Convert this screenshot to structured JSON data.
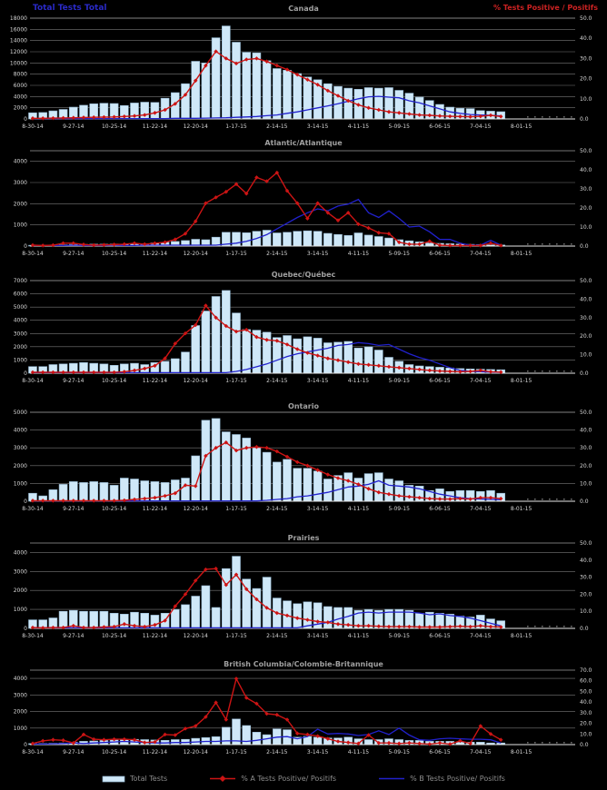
{
  "header": {
    "left_label": "Total Tests Total",
    "right_label": "% Tests Positive / Positifs"
  },
  "legend": {
    "total_tests": "Total Tests",
    "pct_a": "% A Tests Positive/ Positifs",
    "pct_b": "% B Tests Positive/ Positifs"
  },
  "colors": {
    "background": "#000000",
    "bar_fill": "#cfe8f8",
    "bar_stroke": "#8fb2cc",
    "line_a": "#cc1414",
    "line_b": "#2121cc",
    "grid": "#787878",
    "axis_text": "#d8d8d8",
    "title_text": "#a0a0a0",
    "header_blue": "#2a2ac8",
    "header_red": "#cc2222",
    "legend_text": "#8c8c8c",
    "baseline": "#e6e6e6"
  },
  "x_tick_labels": [
    "8-30-14",
    "9-27-14",
    "10-25-14",
    "11-22-14",
    "12-20-14",
    "1-17-15",
    "2-14-15",
    "3-14-15",
    "4-11-15",
    "5-09-15",
    "6-06-15",
    "7-04-15",
    "8-01-15"
  ],
  "chart_data": [
    {
      "type": "bar",
      "title": "Canada",
      "left_axis": {
        "max": 18000,
        "step": 2000,
        "top_value": 18000,
        "tick_labels": [
          "0",
          "2000",
          "4000",
          "6000",
          "8000",
          "10000",
          "12000",
          "14000",
          "16000",
          "18000"
        ]
      },
      "right_axis": {
        "max": 50,
        "step": 10,
        "tick_labels": [
          "0.0",
          "10.0",
          "20.0",
          "30.0",
          "40.0",
          "50.0"
        ]
      },
      "bars": [
        1100,
        1150,
        1450,
        1700,
        2100,
        2450,
        2700,
        2800,
        2750,
        2400,
        2850,
        3000,
        2950,
        3700,
        4700,
        6300,
        10300,
        10000,
        14500,
        16600,
        13700,
        11900,
        11800,
        10400,
        9000,
        8700,
        8100,
        7500,
        7000,
        6300,
        5800,
        5500,
        5300,
        5600,
        5500,
        5600,
        5100,
        4600,
        3900,
        3300,
        2600,
        2100,
        1900,
        1850,
        1500,
        1400,
        1300
      ],
      "pct_a": [
        0.3,
        0.3,
        0.4,
        0.5,
        0.6,
        0.7,
        0.8,
        0.9,
        1.0,
        1.2,
        1.5,
        2.0,
        3.0,
        4.5,
        7.5,
        12.0,
        19.0,
        26.5,
        33.5,
        30.0,
        27.5,
        29.5,
        30.0,
        28.5,
        26.5,
        24.5,
        22.0,
        19.5,
        17.0,
        14.0,
        11.5,
        9.0,
        7.0,
        5.5,
        4.5,
        3.5,
        3.0,
        2.5,
        2.0,
        1.8,
        1.5,
        1.3,
        1.2,
        1.1,
        1.3,
        1.8,
        1.2
      ],
      "pct_b": [
        0.2,
        0.2,
        0.2,
        0.2,
        0.2,
        0.2,
        0.2,
        0.2,
        0.2,
        0.2,
        0.2,
        0.2,
        0.2,
        0.2,
        0.3,
        0.3,
        0.3,
        0.4,
        0.5,
        0.6,
        0.8,
        1.0,
        1.2,
        1.6,
        2.0,
        2.8,
        3.5,
        4.5,
        5.5,
        6.5,
        7.5,
        8.8,
        10.0,
        11.0,
        11.2,
        10.8,
        10.5,
        9.0,
        8.0,
        6.5,
        5.0,
        3.5,
        2.8,
        2.2,
        2.0,
        1.8,
        1.5
      ]
    },
    {
      "type": "bar",
      "title": "Atlantic/Atlantique",
      "left_axis": {
        "max": 4000,
        "step": 1000,
        "top_value": 4500,
        "tick_labels": [
          "0",
          "1000",
          "2000",
          "3000",
          "4000"
        ]
      },
      "right_axis": {
        "max": 50,
        "step": 10,
        "tick_labels": [
          "0.0",
          "10.0",
          "20.0",
          "30.0",
          "40.0",
          "50.0"
        ]
      },
      "bars": [
        40,
        40,
        50,
        60,
        80,
        80,
        90,
        90,
        100,
        90,
        100,
        110,
        150,
        180,
        220,
        260,
        320,
        300,
        420,
        650,
        650,
        630,
        700,
        750,
        620,
        650,
        700,
        720,
        700,
        600,
        550,
        500,
        620,
        520,
        450,
        380,
        300,
        250,
        200,
        150,
        130,
        110,
        100,
        80,
        70,
        60,
        50
      ],
      "pct_a": [
        0.5,
        0.3,
        0.5,
        1.5,
        1.5,
        0.8,
        0.5,
        0.6,
        0.8,
        1.0,
        1.5,
        1.0,
        1.5,
        2.0,
        3.5,
        6.5,
        13.0,
        22.5,
        25.5,
        28.5,
        32.5,
        27.5,
        36.0,
        34.0,
        38.5,
        29.0,
        22.5,
        14.5,
        22.5,
        17.5,
        13.5,
        17.5,
        11.5,
        9.5,
        7.0,
        6.5,
        2.0,
        1.0,
        1.0,
        2.5,
        0.5,
        0.3,
        0.3,
        0.3,
        0.3,
        1.5,
        0.3
      ],
      "pct_b": [
        0.3,
        0.3,
        0.3,
        0.3,
        0.5,
        0.3,
        0.3,
        0.3,
        0.5,
        0.3,
        0.3,
        0.5,
        0.5,
        0.5,
        0.5,
        0.5,
        0.5,
        0.5,
        0.5,
        1.0,
        1.5,
        2.5,
        4.0,
        6.0,
        9.0,
        12.0,
        15.0,
        17.5,
        19.5,
        18.5,
        21.0,
        22.0,
        24.5,
        17.5,
        15.0,
        18.5,
        14.5,
        10.0,
        10.5,
        7.5,
        3.5,
        3.5,
        1.5,
        0.5,
        0.5,
        3.0,
        0.5
      ]
    },
    {
      "type": "bar",
      "title": "Quebec/Québec",
      "left_axis": {
        "max": 7000,
        "step": 1000,
        "top_value": 7000,
        "tick_labels": [
          "0",
          "1000",
          "2000",
          "3000",
          "4000",
          "5000",
          "6000",
          "7000"
        ]
      },
      "right_axis": {
        "max": 50,
        "step": 10,
        "tick_labels": [
          "0.0",
          "10.0",
          "20.0",
          "30.0",
          "40.0",
          "50.0"
        ]
      },
      "bars": [
        500,
        500,
        650,
        700,
        750,
        800,
        750,
        700,
        600,
        700,
        750,
        650,
        800,
        900,
        1100,
        1600,
        3600,
        4700,
        5800,
        6250,
        4550,
        3300,
        3250,
        3100,
        2700,
        2850,
        2600,
        2750,
        2650,
        2300,
        2350,
        2400,
        1900,
        2000,
        1750,
        1200,
        900,
        650,
        550,
        500,
        450,
        400,
        350,
        320,
        300,
        280,
        260
      ],
      "pct_a": [
        0.5,
        0.5,
        0.5,
        0.5,
        0.5,
        0.5,
        0.5,
        0.5,
        0.5,
        0.8,
        1.5,
        2.5,
        4.0,
        8.0,
        16.0,
        21.5,
        26.0,
        36.5,
        30.0,
        25.5,
        22.5,
        23.5,
        19.5,
        18.0,
        17.5,
        15.5,
        13.0,
        11.0,
        9.5,
        8.0,
        7.0,
        6.0,
        5.0,
        4.5,
        4.0,
        3.5,
        3.0,
        2.5,
        2.0,
        1.5,
        1.2,
        1.0,
        0.8,
        1.0,
        1.5,
        0.8,
        0.6
      ],
      "pct_b": [
        0.3,
        0.3,
        0.3,
        0.3,
        0.3,
        0.3,
        0.3,
        0.3,
        0.3,
        0.3,
        0.3,
        0.3,
        0.3,
        0.3,
        0.3,
        0.3,
        0.3,
        0.3,
        0.3,
        0.3,
        1.0,
        2.0,
        3.5,
        5.0,
        7.0,
        9.0,
        10.5,
        11.5,
        12.5,
        13.5,
        15.0,
        15.5,
        16.5,
        16.0,
        15.0,
        15.5,
        13.0,
        10.5,
        8.5,
        7.0,
        5.0,
        3.0,
        1.5,
        1.0,
        0.8,
        0.6,
        0.5
      ]
    },
    {
      "type": "bar",
      "title": "Ontario",
      "left_axis": {
        "max": 5000,
        "step": 1000,
        "top_value": 5000,
        "tick_labels": [
          "0",
          "1000",
          "2000",
          "3000",
          "4000",
          "5000"
        ]
      },
      "right_axis": {
        "max": 50,
        "step": 10,
        "tick_labels": [
          "0.0",
          "10.0",
          "20.0",
          "30.0",
          "40.0",
          "50.0"
        ]
      },
      "bars": [
        450,
        300,
        650,
        950,
        1100,
        1050,
        1100,
        1050,
        900,
        1300,
        1250,
        1150,
        1100,
        1050,
        1200,
        1300,
        2550,
        4550,
        4650,
        3900,
        3750,
        3550,
        3000,
        2750,
        2200,
        2350,
        1850,
        1850,
        1700,
        1250,
        1450,
        1600,
        1300,
        1550,
        1600,
        1250,
        1150,
        900,
        850,
        600,
        700,
        550,
        600,
        600,
        550,
        600,
        450
      ],
      "pct_a": [
        0.3,
        0.3,
        0.3,
        0.3,
        0.3,
        0.3,
        0.3,
        0.3,
        0.3,
        0.5,
        1.0,
        1.5,
        2.0,
        3.0,
        4.5,
        9.0,
        8.5,
        25.5,
        30.0,
        33.0,
        28.5,
        30.0,
        30.5,
        30.0,
        28.0,
        25.0,
        22.0,
        20.0,
        17.5,
        15.0,
        13.0,
        11.5,
        9.5,
        7.0,
        5.0,
        4.0,
        3.0,
        2.5,
        2.0,
        1.5,
        1.3,
        1.2,
        1.5,
        1.2,
        2.0,
        2.0,
        1.5
      ],
      "pct_b": [
        0.2,
        0.2,
        0.2,
        0.2,
        0.2,
        0.2,
        0.2,
        0.2,
        0.2,
        0.2,
        0.2,
        0.2,
        0.2,
        0.2,
        0.2,
        0.2,
        0.2,
        0.2,
        0.2,
        0.2,
        0.2,
        0.2,
        0.2,
        0.5,
        1.0,
        1.5,
        2.5,
        3.0,
        4.0,
        5.0,
        6.5,
        8.0,
        8.5,
        9.5,
        11.5,
        9.0,
        8.5,
        8.0,
        7.0,
        5.5,
        4.0,
        3.0,
        2.0,
        1.5,
        1.2,
        1.0,
        0.8
      ]
    },
    {
      "type": "bar",
      "title": "Prairies",
      "left_axis": {
        "max": 4000,
        "step": 1000,
        "top_value": 4500,
        "tick_labels": [
          "0",
          "1000",
          "2000",
          "3000",
          "4000"
        ]
      },
      "right_axis": {
        "max": 50,
        "step": 10,
        "tick_labels": [
          "0.0",
          "10.0",
          "20.0",
          "30.0",
          "40.0",
          "50.0"
        ]
      },
      "bars": [
        450,
        450,
        550,
        900,
        950,
        900,
        900,
        900,
        800,
        750,
        850,
        800,
        700,
        800,
        1000,
        1250,
        1700,
        2250,
        1100,
        3150,
        3800,
        2600,
        2100,
        2700,
        1600,
        1450,
        1300,
        1400,
        1350,
        1150,
        1100,
        1100,
        950,
        1000,
        950,
        1000,
        1000,
        950,
        800,
        850,
        800,
        750,
        650,
        600,
        700,
        500,
        400
      ],
      "pct_a": [
        0.5,
        0.3,
        0.5,
        0.5,
        1.5,
        0.5,
        0.5,
        0.8,
        1.0,
        2.5,
        1.5,
        1.0,
        2.0,
        4.5,
        13.0,
        20.0,
        28.0,
        34.5,
        35.0,
        25.5,
        31.5,
        23.0,
        17.0,
        12.0,
        9.0,
        7.5,
        6.0,
        5.0,
        4.0,
        3.5,
        2.5,
        2.0,
        1.5,
        1.5,
        1.2,
        1.0,
        1.0,
        1.0,
        0.8,
        0.8,
        0.8,
        1.0,
        1.2,
        1.0,
        1.5,
        1.0,
        0.8
      ],
      "pct_b": [
        0.3,
        0.3,
        0.3,
        0.3,
        0.3,
        0.3,
        0.3,
        0.3,
        0.3,
        0.3,
        0.3,
        0.3,
        0.3,
        0.3,
        0.3,
        0.3,
        0.3,
        0.3,
        0.3,
        0.3,
        0.3,
        0.3,
        0.3,
        0.3,
        0.3,
        0.3,
        0.3,
        1.5,
        2.5,
        3.5,
        5.5,
        7.0,
        9.0,
        9.5,
        9.0,
        9.5,
        9.5,
        9.5,
        9.0,
        8.0,
        8.5,
        7.5,
        7.0,
        6.0,
        4.5,
        3.0,
        1.5
      ]
    },
    {
      "type": "bar",
      "title": "British Columbia/Colombie-Britannique",
      "left_axis": {
        "max": 4000,
        "step": 1000,
        "top_value": 4500,
        "tick_labels": [
          "0",
          "1000",
          "2000",
          "3000",
          "4000"
        ]
      },
      "right_axis": {
        "max": 70,
        "step": 10,
        "tick_labels": [
          "0.0",
          "10.0",
          "20.0",
          "30.0",
          "40.0",
          "50.0",
          "60.0",
          "70.0"
        ]
      },
      "bars": [
        60,
        70,
        80,
        100,
        150,
        200,
        220,
        250,
        280,
        300,
        320,
        300,
        280,
        260,
        300,
        320,
        380,
        420,
        480,
        1050,
        1550,
        1150,
        750,
        600,
        950,
        900,
        450,
        500,
        450,
        400,
        400,
        450,
        350,
        300,
        300,
        350,
        300,
        250,
        250,
        200,
        200,
        200,
        150,
        150,
        150,
        100,
        100
      ],
      "pct_a": [
        1.0,
        3.5,
        4.5,
        4.0,
        1.5,
        9.5,
        5.0,
        4.5,
        5.0,
        5.0,
        4.5,
        2.0,
        2.5,
        9.5,
        9.0,
        15.0,
        17.5,
        26.0,
        39.5,
        23.5,
        62.0,
        44.0,
        38.5,
        29.0,
        28.0,
        23.5,
        10.5,
        9.5,
        8.0,
        5.5,
        3.0,
        2.0,
        1.0,
        9.0,
        1.5,
        1.5,
        1.0,
        1.5,
        1.0,
        0.5,
        1.5,
        0.5,
        3.5,
        1.0,
        17.5,
        10.0,
        4.5
      ],
      "pct_b": [
        0.5,
        0.5,
        0.8,
        1.0,
        1.5,
        1.0,
        1.5,
        2.0,
        2.5,
        3.0,
        2.5,
        2.0,
        1.5,
        1.5,
        2.0,
        2.0,
        2.5,
        3.0,
        3.0,
        3.5,
        3.5,
        3.0,
        4.0,
        5.5,
        7.0,
        7.5,
        5.5,
        7.5,
        14.5,
        10.0,
        10.5,
        10.0,
        8.5,
        9.5,
        13.0,
        9.5,
        15.5,
        9.0,
        4.5,
        4.0,
        5.5,
        6.0,
        5.5,
        5.0,
        5.0,
        4.5,
        1.5
      ]
    }
  ]
}
